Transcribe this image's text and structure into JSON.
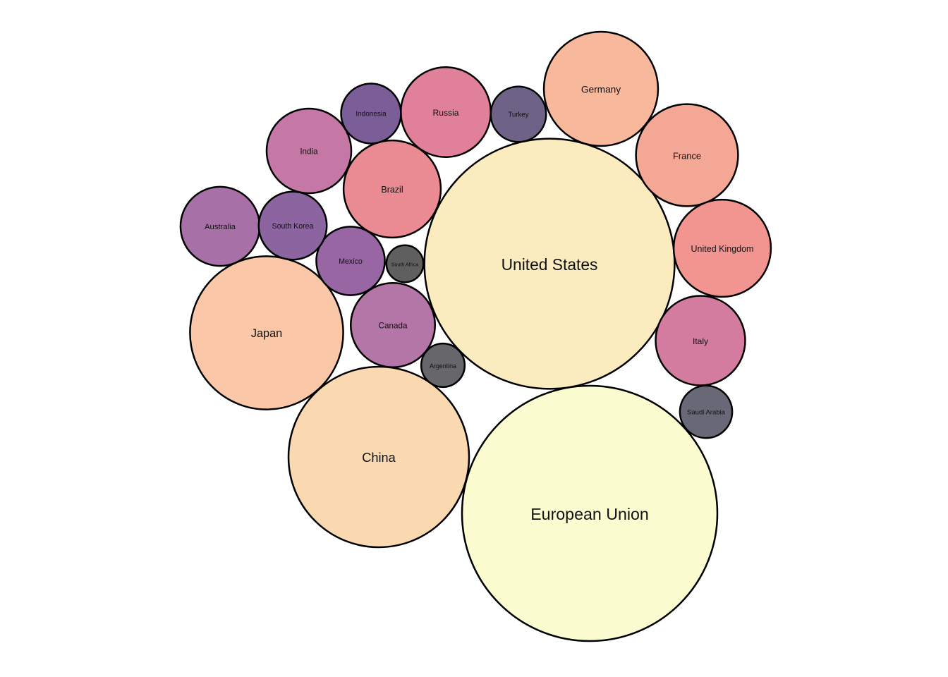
{
  "chart_data": {
    "type": "bubble",
    "title": "",
    "items": [
      {
        "label": "European Union",
        "value": 100,
        "color": "#fbfdd0"
      },
      {
        "label": "United States",
        "value": 96,
        "color": "#fbecc0"
      },
      {
        "label": "China",
        "value": 50,
        "color": "#fad9b1"
      },
      {
        "label": "Japan",
        "value": 36,
        "color": "#fac8a8"
      },
      {
        "label": "Germany",
        "value": 20,
        "color": "#f8b89c"
      },
      {
        "label": "France",
        "value": 16,
        "color": "#f5a796"
      },
      {
        "label": "United Kingdom",
        "value": 14.5,
        "color": "#f29591"
      },
      {
        "label": "Brazil",
        "value": 14.5,
        "color": "#ea8a93"
      },
      {
        "label": "Italy",
        "value": 12.3,
        "color": "#d37c9f"
      },
      {
        "label": "Canada",
        "value": 10.9,
        "color": "#b476a6"
      },
      {
        "label": "Russia",
        "value": 12.4,
        "color": "#e0809a"
      },
      {
        "label": "India",
        "value": 11,
        "color": "#c578a6"
      },
      {
        "label": "Australia",
        "value": 9.6,
        "color": "#a770a6"
      },
      {
        "label": "Mexico",
        "value": 7.2,
        "color": "#9966a4"
      },
      {
        "label": "South Korea",
        "value": 7.1,
        "color": "#8b64a0"
      },
      {
        "label": "Indonesia",
        "value": 5.5,
        "color": "#7b5e98"
      },
      {
        "label": "Turkey",
        "value": 4.7,
        "color": "#6e6387"
      },
      {
        "label": "Saudi Arabia",
        "value": 4.2,
        "color": "#696877"
      },
      {
        "label": "Argentina",
        "value": 2.9,
        "color": "#67676b"
      },
      {
        "label": "South Africa",
        "value": 2.1,
        "color": "#5f5f5f"
      }
    ]
  }
}
